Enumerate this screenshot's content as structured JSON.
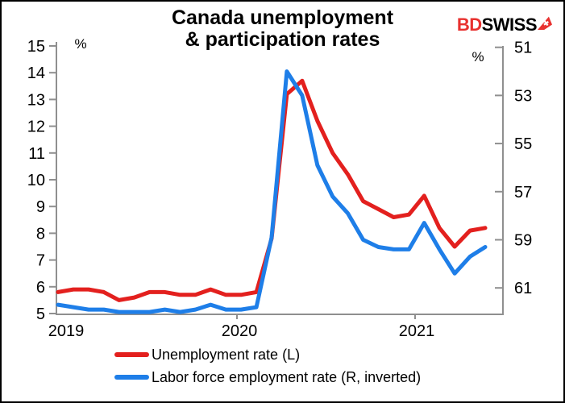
{
  "title": {
    "line1": "Canada unemployment",
    "line2": "& participation rates"
  },
  "logo": {
    "part1": "BD",
    "part2": "SWISS",
    "flag_icon": "red-pennant-with-swiss-cross",
    "red": "#e8312f"
  },
  "axes": {
    "left": {
      "unit": "%",
      "ticks": [
        "15",
        "14",
        "13",
        "12",
        "11",
        "10",
        "9",
        "8",
        "7",
        "6",
        "5"
      ]
    },
    "right": {
      "unit": "%",
      "ticks": [
        "51",
        "53",
        "55",
        "57",
        "59",
        "61"
      ]
    },
    "x": {
      "ticks": [
        "2019",
        "2020",
        "2021"
      ]
    }
  },
  "legend": [
    {
      "label": "Unemployment rate (L)",
      "color": "#e3201e"
    },
    {
      "label": "Labor force employment rate (R, inverted)",
      "color": "#1e7ee8"
    }
  ],
  "chart_data": {
    "type": "line",
    "title": "Canada unemployment & participation rates",
    "x": [
      "2019-01",
      "2019-02",
      "2019-03",
      "2019-04",
      "2019-05",
      "2019-06",
      "2019-07",
      "2019-08",
      "2019-09",
      "2019-10",
      "2019-11",
      "2019-12",
      "2020-01",
      "2020-02",
      "2020-03",
      "2020-04",
      "2020-05",
      "2020-06",
      "2020-07",
      "2020-08",
      "2020-09",
      "2020-10",
      "2020-11",
      "2020-12",
      "2021-01",
      "2021-02",
      "2021-03",
      "2021-04",
      "2021-05"
    ],
    "x_axis_labels": [
      "2019",
      "2020",
      "2021"
    ],
    "left_axis": {
      "label": "%",
      "range": [
        5,
        15
      ],
      "ticks": [
        15,
        14,
        13,
        12,
        11,
        10,
        9,
        8,
        7,
        6,
        5
      ]
    },
    "right_axis": {
      "label": "%",
      "range": [
        51,
        62
      ],
      "ticks": [
        51,
        53,
        55,
        57,
        59,
        61
      ],
      "inverted": true
    },
    "grid": false,
    "legend_position": "bottom-left",
    "series": [
      {
        "name": "Unemployment rate (L)",
        "axis": "left",
        "color": "#e3201e",
        "values": [
          5.8,
          5.9,
          5.9,
          5.8,
          5.5,
          5.6,
          5.8,
          5.8,
          5.7,
          5.7,
          5.9,
          5.7,
          5.7,
          5.8,
          7.8,
          13.2,
          13.7,
          12.2,
          11.0,
          10.2,
          9.2,
          8.9,
          8.6,
          8.7,
          9.4,
          8.2,
          7.5,
          8.1,
          8.2
        ]
      },
      {
        "name": "Labor force employment rate (R, inverted)",
        "axis": "right",
        "color": "#1e7ee8",
        "values": [
          61.7,
          61.8,
          61.9,
          61.9,
          62.0,
          62.0,
          62.0,
          61.9,
          62.0,
          61.9,
          61.7,
          61.9,
          61.9,
          61.8,
          58.9,
          52.0,
          53.0,
          55.9,
          57.2,
          57.9,
          59.0,
          59.3,
          59.4,
          59.4,
          58.3,
          59.4,
          60.4,
          59.7,
          59.3
        ]
      }
    ]
  }
}
